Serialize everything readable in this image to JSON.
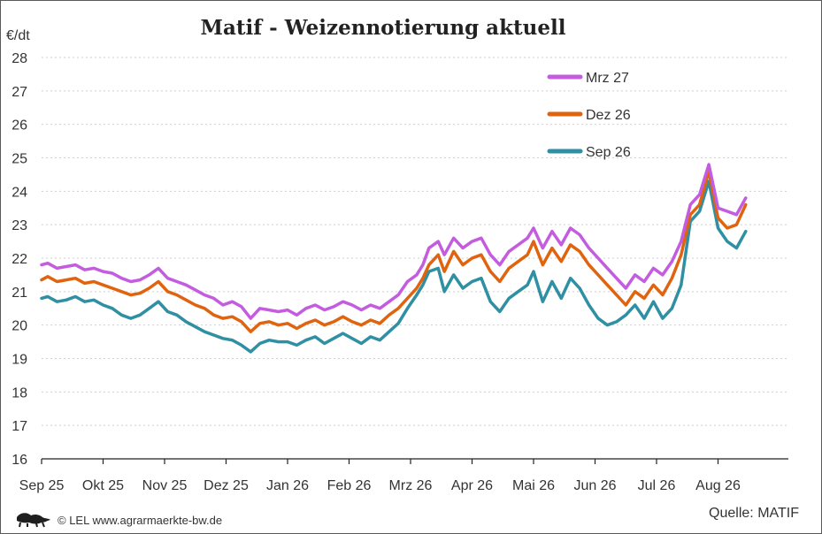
{
  "header": {
    "title": "Matif - Weizennotierung aktuell",
    "unit_label": "€/dt"
  },
  "footer": {
    "credit": "© LEL www.agrarmaerkte-bw.de",
    "source": "Quelle: MATIF",
    "logo_icon": "lion-emblem-icon"
  },
  "colors": {
    "Mrz 27": "#c45ce0",
    "Dez 26": "#e0640f",
    "Sep 26": "#2f8fa3"
  },
  "chart_data": {
    "type": "line",
    "title": "Matif - Weizennotierung aktuell",
    "ylabel": "€/dt",
    "xlabel": "",
    "ylim": [
      16,
      28
    ],
    "yticks": [
      16,
      17,
      18,
      19,
      20,
      21,
      22,
      23,
      24,
      25,
      26,
      27,
      28
    ],
    "xticks": [
      "Sep 25",
      "Okt 25",
      "Nov 25",
      "Dez 25",
      "Jan 26",
      "Feb 26",
      "Mrz 26",
      "Apr 26",
      "Mai 26",
      "Jun 26",
      "Jul 26",
      "Aug 26"
    ],
    "grid": true,
    "legend": "top-right",
    "x": [
      0,
      0.1,
      0.25,
      0.4,
      0.55,
      0.7,
      0.85,
      1.0,
      1.15,
      1.3,
      1.45,
      1.6,
      1.75,
      1.9,
      2.05,
      2.2,
      2.35,
      2.5,
      2.65,
      2.8,
      2.95,
      3.1,
      3.25,
      3.4,
      3.55,
      3.7,
      3.85,
      4.0,
      4.15,
      4.3,
      4.45,
      4.6,
      4.75,
      4.9,
      5.05,
      5.2,
      5.35,
      5.5,
      5.65,
      5.8,
      5.95,
      6.1,
      6.2,
      6.3,
      6.45,
      6.55,
      6.7,
      6.85,
      7.0,
      7.15,
      7.3,
      7.45,
      7.6,
      7.75,
      7.9,
      8.0,
      8.15,
      8.3,
      8.45,
      8.6,
      8.75,
      8.9,
      9.05,
      9.2,
      9.35,
      9.5,
      9.65,
      9.8,
      9.95,
      10.1,
      10.25,
      10.4,
      10.55,
      10.7,
      10.85,
      11.0,
      11.15,
      11.3,
      11.45
    ],
    "series": [
      {
        "name": "Mrz 27",
        "values": [
          21.8,
          21.85,
          21.7,
          21.75,
          21.8,
          21.65,
          21.7,
          21.6,
          21.55,
          21.4,
          21.3,
          21.35,
          21.5,
          21.7,
          21.4,
          21.3,
          21.2,
          21.05,
          20.9,
          20.8,
          20.6,
          20.7,
          20.55,
          20.2,
          20.5,
          20.45,
          20.4,
          20.45,
          20.3,
          20.5,
          20.6,
          20.45,
          20.55,
          20.7,
          20.6,
          20.45,
          20.6,
          20.5,
          20.7,
          20.9,
          21.3,
          21.5,
          21.8,
          22.3,
          22.5,
          22.1,
          22.6,
          22.3,
          22.5,
          22.6,
          22.1,
          21.8,
          22.2,
          22.4,
          22.6,
          22.9,
          22.3,
          22.8,
          22.4,
          22.9,
          22.7,
          22.3,
          22.0,
          21.7,
          21.4,
          21.1,
          21.5,
          21.3,
          21.7,
          21.5,
          21.9,
          22.5,
          23.6,
          23.9,
          24.8,
          23.5,
          23.4,
          23.3,
          23.8
        ]
      },
      {
        "name": "Dez 26",
        "values": [
          21.35,
          21.45,
          21.3,
          21.35,
          21.4,
          21.25,
          21.3,
          21.2,
          21.1,
          21.0,
          20.9,
          20.95,
          21.1,
          21.3,
          21.0,
          20.9,
          20.75,
          20.6,
          20.5,
          20.3,
          20.2,
          20.25,
          20.1,
          19.8,
          20.05,
          20.1,
          20.0,
          20.05,
          19.9,
          20.05,
          20.15,
          20.0,
          20.1,
          20.25,
          20.1,
          20.0,
          20.15,
          20.05,
          20.3,
          20.5,
          20.8,
          21.1,
          21.4,
          21.8,
          22.1,
          21.6,
          22.2,
          21.8,
          22.0,
          22.1,
          21.6,
          21.3,
          21.7,
          21.9,
          22.1,
          22.5,
          21.8,
          22.3,
          21.9,
          22.4,
          22.2,
          21.8,
          21.5,
          21.2,
          20.9,
          20.6,
          21.0,
          20.8,
          21.2,
          20.9,
          21.4,
          22.1,
          23.3,
          23.6,
          24.6,
          23.2,
          22.9,
          23.0,
          23.6
        ]
      },
      {
        "name": "Sep 26",
        "values": [
          20.8,
          20.85,
          20.7,
          20.75,
          20.85,
          20.7,
          20.75,
          20.6,
          20.5,
          20.3,
          20.2,
          20.3,
          20.5,
          20.7,
          20.4,
          20.3,
          20.1,
          19.95,
          19.8,
          19.7,
          19.6,
          19.55,
          19.4,
          19.2,
          19.45,
          19.55,
          19.5,
          19.5,
          19.4,
          19.55,
          19.65,
          19.45,
          19.6,
          19.75,
          19.6,
          19.45,
          19.65,
          19.55,
          19.8,
          20.05,
          20.5,
          20.9,
          21.2,
          21.6,
          21.7,
          21.0,
          21.5,
          21.1,
          21.3,
          21.4,
          20.7,
          20.4,
          20.8,
          21.0,
          21.2,
          21.6,
          20.7,
          21.3,
          20.8,
          21.4,
          21.1,
          20.6,
          20.2,
          20.0,
          20.1,
          20.3,
          20.6,
          20.2,
          20.7,
          20.2,
          20.5,
          21.2,
          23.1,
          23.4,
          24.3,
          22.9,
          22.5,
          22.3,
          22.8
        ]
      }
    ]
  }
}
